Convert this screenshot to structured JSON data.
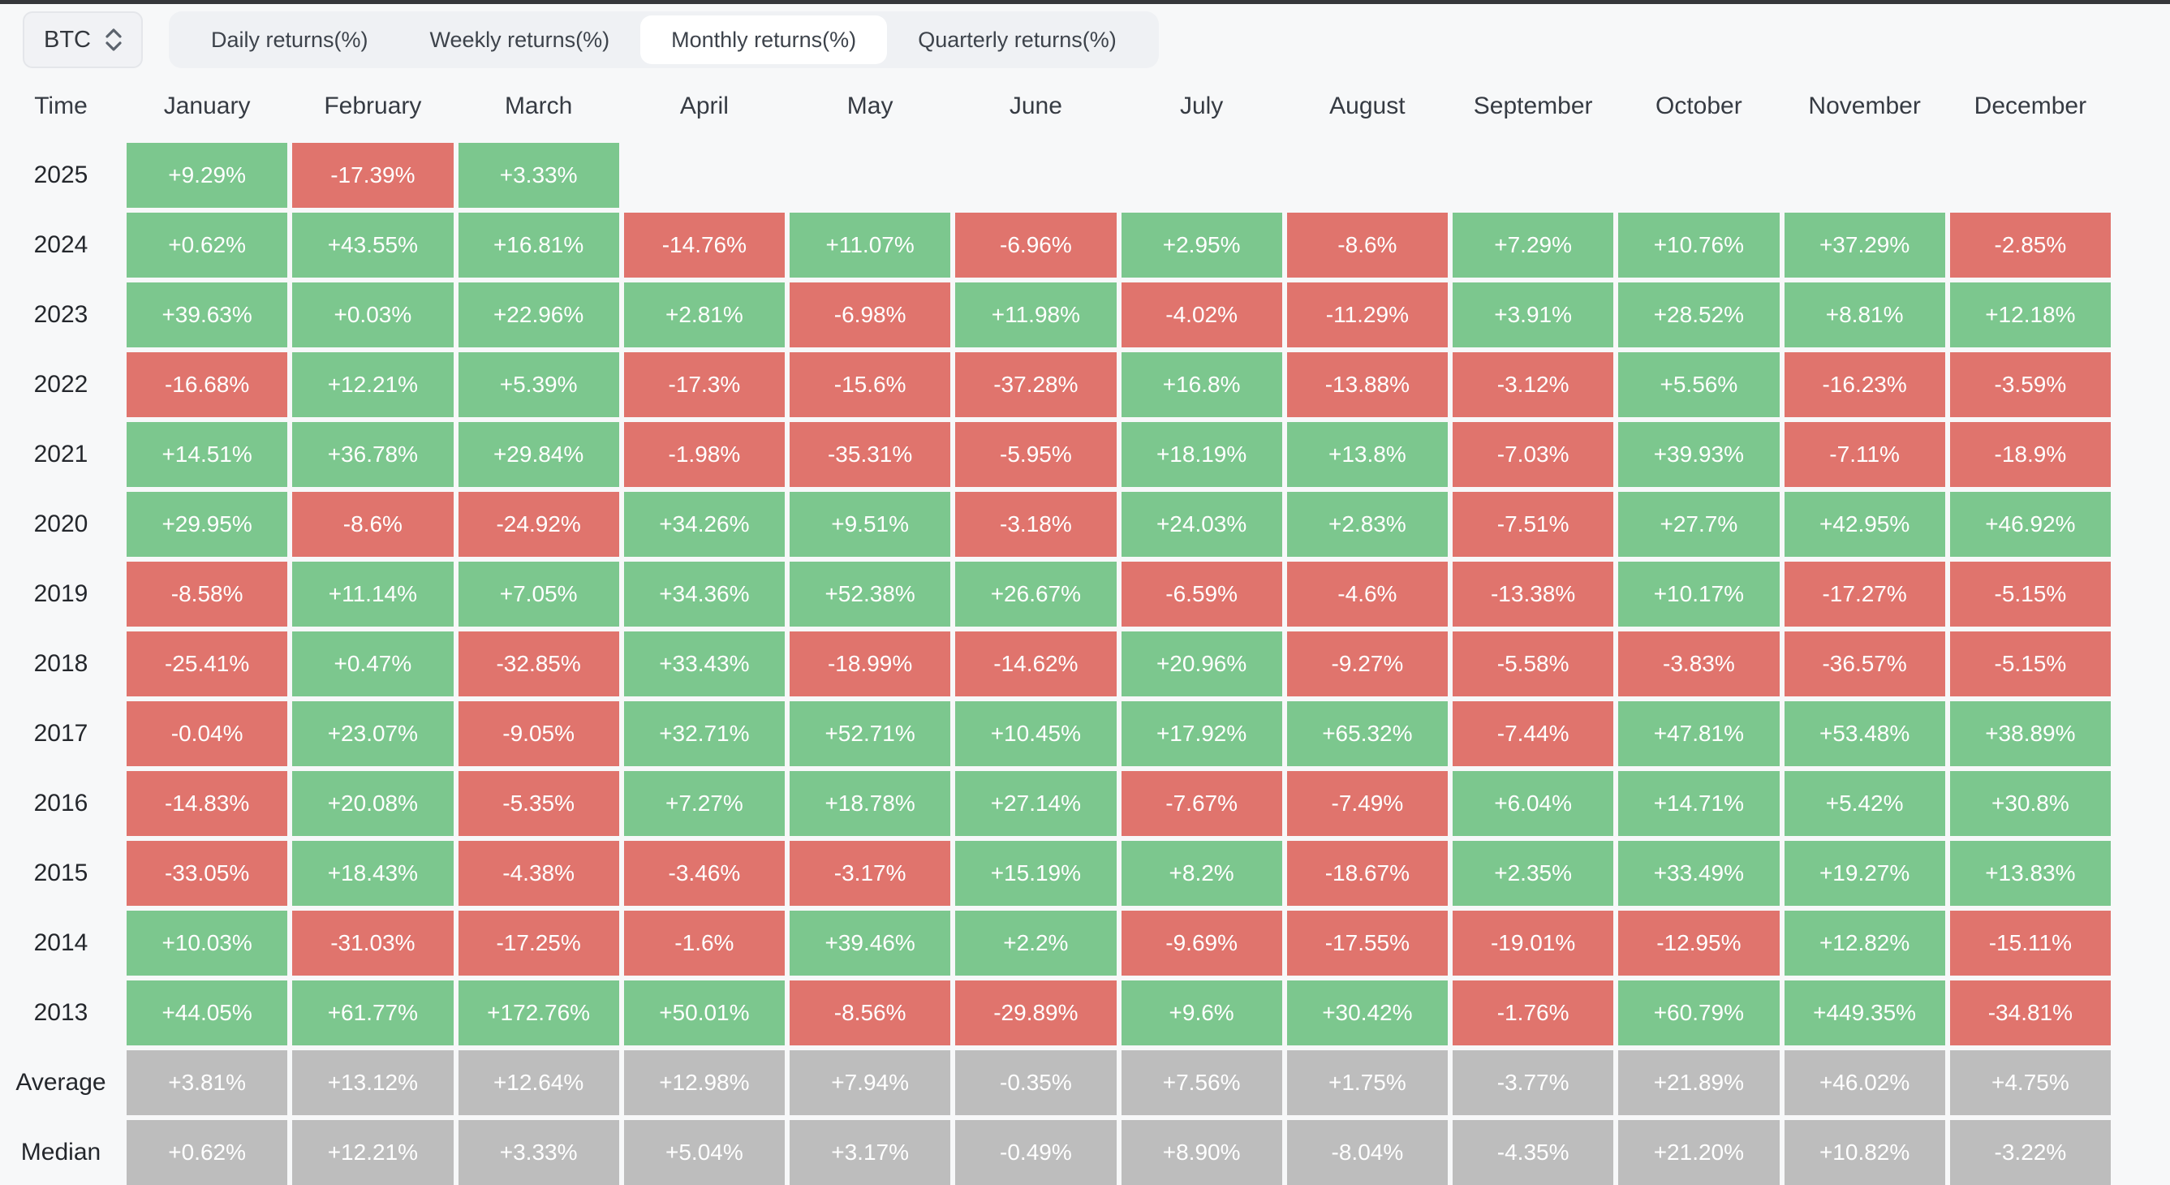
{
  "top_bar": {
    "symbol_selector": {
      "label": "BTC",
      "icon": "updown-chevron-icon"
    },
    "tabs": [
      {
        "label": "Daily returns(%)",
        "active": false
      },
      {
        "label": "Weekly returns(%)",
        "active": false
      },
      {
        "label": "Monthly returns(%)",
        "active": true
      },
      {
        "label": "Quarterly returns(%)",
        "active": false
      }
    ]
  },
  "table": {
    "time_header": "Time",
    "months": [
      "January",
      "February",
      "March",
      "April",
      "May",
      "June",
      "July",
      "August",
      "September",
      "October",
      "November",
      "December"
    ],
    "rows": [
      {
        "label": "2025",
        "type": "year",
        "cells": [
          "+9.29%",
          "-17.39%",
          "+3.33%",
          "",
          "",
          "",
          "",
          "",
          "",
          "",
          "",
          ""
        ]
      },
      {
        "label": "2024",
        "type": "year",
        "cells": [
          "+0.62%",
          "+43.55%",
          "+16.81%",
          "-14.76%",
          "+11.07%",
          "-6.96%",
          "+2.95%",
          "-8.6%",
          "+7.29%",
          "+10.76%",
          "+37.29%",
          "-2.85%"
        ]
      },
      {
        "label": "2023",
        "type": "year",
        "cells": [
          "+39.63%",
          "+0.03%",
          "+22.96%",
          "+2.81%",
          "-6.98%",
          "+11.98%",
          "-4.02%",
          "-11.29%",
          "+3.91%",
          "+28.52%",
          "+8.81%",
          "+12.18%"
        ]
      },
      {
        "label": "2022",
        "type": "year",
        "cells": [
          "-16.68%",
          "+12.21%",
          "+5.39%",
          "-17.3%",
          "-15.6%",
          "-37.28%",
          "+16.8%",
          "-13.88%",
          "-3.12%",
          "+5.56%",
          "-16.23%",
          "-3.59%"
        ]
      },
      {
        "label": "2021",
        "type": "year",
        "cells": [
          "+14.51%",
          "+36.78%",
          "+29.84%",
          "-1.98%",
          "-35.31%",
          "-5.95%",
          "+18.19%",
          "+13.8%",
          "-7.03%",
          "+39.93%",
          "-7.11%",
          "-18.9%"
        ]
      },
      {
        "label": "2020",
        "type": "year",
        "cells": [
          "+29.95%",
          "-8.6%",
          "-24.92%",
          "+34.26%",
          "+9.51%",
          "-3.18%",
          "+24.03%",
          "+2.83%",
          "-7.51%",
          "+27.7%",
          "+42.95%",
          "+46.92%"
        ]
      },
      {
        "label": "2019",
        "type": "year",
        "cells": [
          "-8.58%",
          "+11.14%",
          "+7.05%",
          "+34.36%",
          "+52.38%",
          "+26.67%",
          "-6.59%",
          "-4.6%",
          "-13.38%",
          "+10.17%",
          "-17.27%",
          "-5.15%"
        ]
      },
      {
        "label": "2018",
        "type": "year",
        "cells": [
          "-25.41%",
          "+0.47%",
          "-32.85%",
          "+33.43%",
          "-18.99%",
          "-14.62%",
          "+20.96%",
          "-9.27%",
          "-5.58%",
          "-3.83%",
          "-36.57%",
          "-5.15%"
        ]
      },
      {
        "label": "2017",
        "type": "year",
        "cells": [
          "-0.04%",
          "+23.07%",
          "-9.05%",
          "+32.71%",
          "+52.71%",
          "+10.45%",
          "+17.92%",
          "+65.32%",
          "-7.44%",
          "+47.81%",
          "+53.48%",
          "+38.89%"
        ]
      },
      {
        "label": "2016",
        "type": "year",
        "cells": [
          "-14.83%",
          "+20.08%",
          "-5.35%",
          "+7.27%",
          "+18.78%",
          "+27.14%",
          "-7.67%",
          "-7.49%",
          "+6.04%",
          "+14.71%",
          "+5.42%",
          "+30.8%"
        ]
      },
      {
        "label": "2015",
        "type": "year",
        "cells": [
          "-33.05%",
          "+18.43%",
          "-4.38%",
          "-3.46%",
          "-3.17%",
          "+15.19%",
          "+8.2%",
          "-18.67%",
          "+2.35%",
          "+33.49%",
          "+19.27%",
          "+13.83%"
        ]
      },
      {
        "label": "2014",
        "type": "year",
        "cells": [
          "+10.03%",
          "-31.03%",
          "-17.25%",
          "-1.6%",
          "+39.46%",
          "+2.2%",
          "-9.69%",
          "-17.55%",
          "-19.01%",
          "-12.95%",
          "+12.82%",
          "-15.11%"
        ]
      },
      {
        "label": "2013",
        "type": "year",
        "cells": [
          "+44.05%",
          "+61.77%",
          "+172.76%",
          "+50.01%",
          "-8.56%",
          "-29.89%",
          "+9.6%",
          "+30.42%",
          "-1.76%",
          "+60.79%",
          "+449.35%",
          "-34.81%"
        ]
      },
      {
        "label": "Average",
        "type": "summary",
        "cells": [
          "+3.81%",
          "+13.12%",
          "+12.64%",
          "+12.98%",
          "+7.94%",
          "-0.35%",
          "+7.56%",
          "+1.75%",
          "-3.77%",
          "+21.89%",
          "+46.02%",
          "+4.75%"
        ]
      },
      {
        "label": "Median",
        "type": "summary",
        "cells": [
          "+0.62%",
          "+12.21%",
          "+3.33%",
          "+5.04%",
          "+3.17%",
          "-0.49%",
          "+8.90%",
          "-8.04%",
          "-4.35%",
          "+21.20%",
          "+10.82%",
          "-3.22%"
        ]
      }
    ]
  },
  "colors": {
    "positive": "#7cc78e",
    "negative": "#e0746d",
    "neutral": "#bdbdbd",
    "page_bg": "#f7f8f9",
    "top_edge": "#36373b"
  }
}
